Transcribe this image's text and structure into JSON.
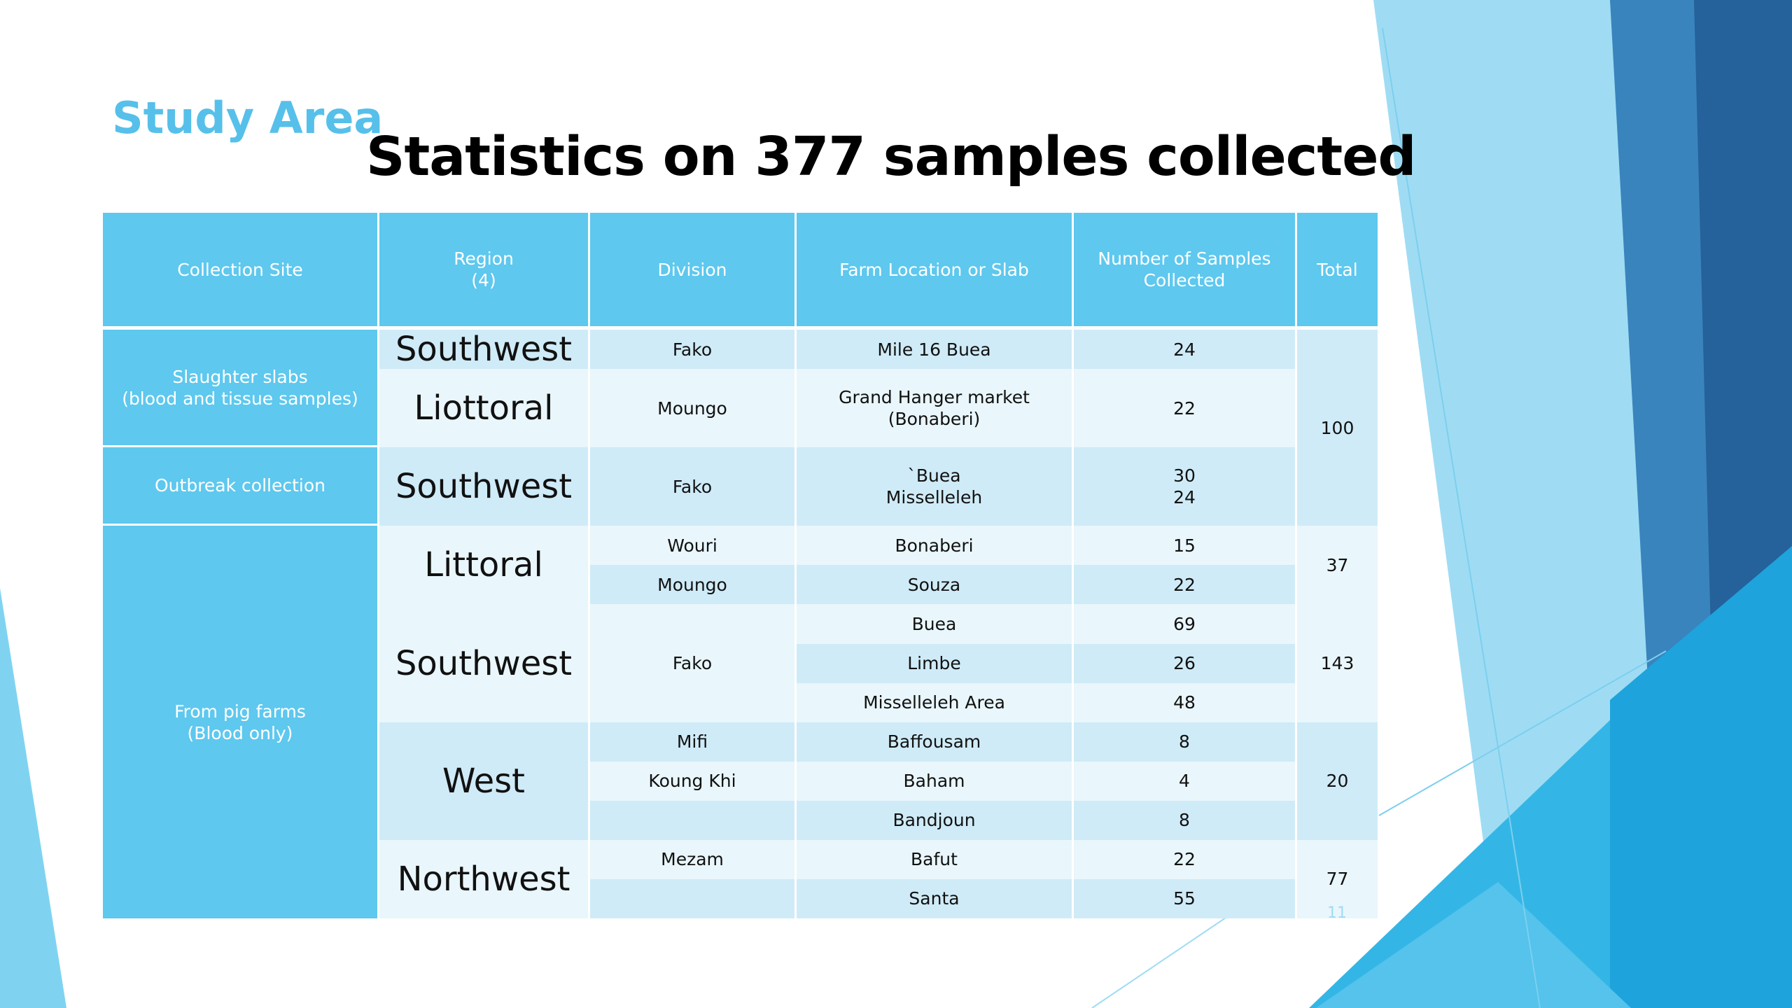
{
  "heading": "Study Area",
  "title": "Statistics on 377 samples collected",
  "headers": {
    "site": "Collection Site",
    "region_l1": "Region",
    "region_l2": "(4)",
    "division": "Division",
    "farm": "Farm Location or Slab",
    "samples_l1": "Number of Samples",
    "samples_l2": "Collected",
    "total": "Total"
  },
  "sites": {
    "slaughter_l1": "Slaughter slabs",
    "slaughter_l2": "(blood and tissue samples)",
    "outbreak": "Outbreak collection",
    "farms_l1": "From pig farms",
    "farms_l2": "(Blood only)"
  },
  "rows": [
    {
      "region": "Southwest",
      "division": "Fako",
      "farm": "Mile 16 Buea",
      "samples": "24"
    },
    {
      "region": "Liottoral",
      "division": "Moungo",
      "farm": "Grand Hanger market (Bonaberi)",
      "samples": "22"
    },
    {
      "region": "Southwest",
      "division": "Fako",
      "farm_l1": "`Buea",
      "farm_l2": "Misselleleh",
      "samples_l1": "30",
      "samples_l2": "24"
    },
    {
      "region": "Littoral",
      "division": "Wouri",
      "farm": "Bonaberi",
      "samples": "15"
    },
    {
      "division": "Moungo",
      "farm": "Souza",
      "samples": "22"
    },
    {
      "region": "Southwest",
      "division": "Fako",
      "farm": "Buea",
      "samples": "69"
    },
    {
      "farm": "Limbe",
      "samples": "26"
    },
    {
      "farm": "Misselleleh Area",
      "samples": "48"
    },
    {
      "region": "West",
      "division": "Mifi",
      "farm": "Baffousam",
      "samples": "8"
    },
    {
      "division": "Koung Khi",
      "farm": "Baham",
      "samples": "4"
    },
    {
      "division": "",
      "farm": "Bandjoun",
      "samples": "8"
    },
    {
      "region": "Northwest",
      "division": "Mezam",
      "farm": "Bafut",
      "samples": "22"
    },
    {
      "division": "",
      "farm": "Santa",
      "samples": "55"
    }
  ],
  "totals": [
    "100",
    "37",
    "143",
    "20",
    "77"
  ],
  "page_number": "11"
}
